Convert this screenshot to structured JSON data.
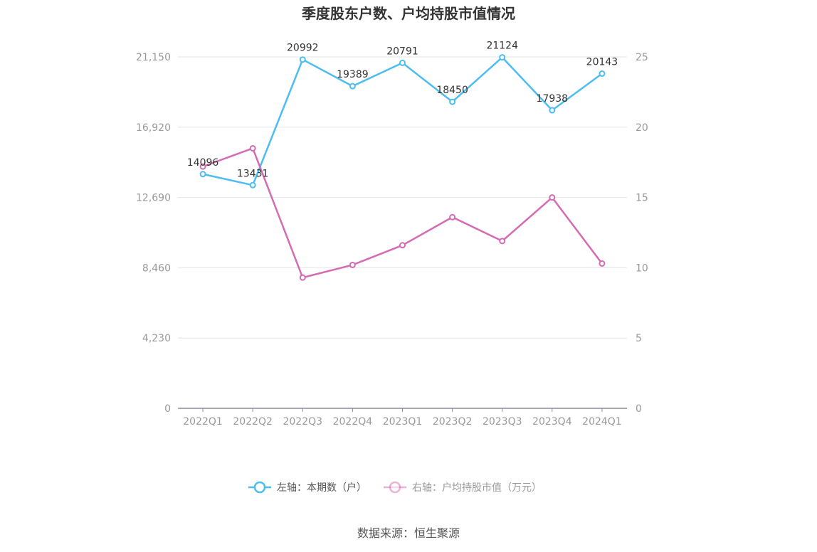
{
  "chart_data": {
    "type": "line",
    "title": "季度股东户数、户均持股市值情况",
    "categories": [
      "2022Q1",
      "2022Q2",
      "2022Q3",
      "2022Q4",
      "2023Q1",
      "2023Q2",
      "2023Q3",
      "2023Q4",
      "2024Q1"
    ],
    "left_axis": {
      "ticks": [
        "0",
        "4,230",
        "8,460",
        "12,690",
        "16,920",
        "21,150"
      ],
      "max": 21150
    },
    "right_axis": {
      "ticks": [
        "0",
        "5",
        "10",
        "15",
        "20",
        "25"
      ],
      "max": 25
    },
    "series": [
      {
        "name": "左轴：本期数（户）",
        "axis": "left",
        "color": "#4dbdf0",
        "values": [
          14096,
          13431,
          20992,
          19389,
          20791,
          18450,
          21124,
          17938,
          20143
        ],
        "labels": [
          "14096",
          "13431",
          "20992",
          "19389",
          "20791",
          "18450",
          "21124",
          "17938",
          "20143"
        ]
      },
      {
        "name": "右轴：户均持股市值（万元）",
        "axis": "right",
        "color": "#d46bb3",
        "values": [
          17.2,
          18.5,
          9.3,
          10.2,
          11.6,
          13.6,
          11.9,
          15.0,
          10.3
        ]
      }
    ],
    "grid": true,
    "legend": "bottom-center"
  },
  "source": "数据来源：恒生聚源"
}
